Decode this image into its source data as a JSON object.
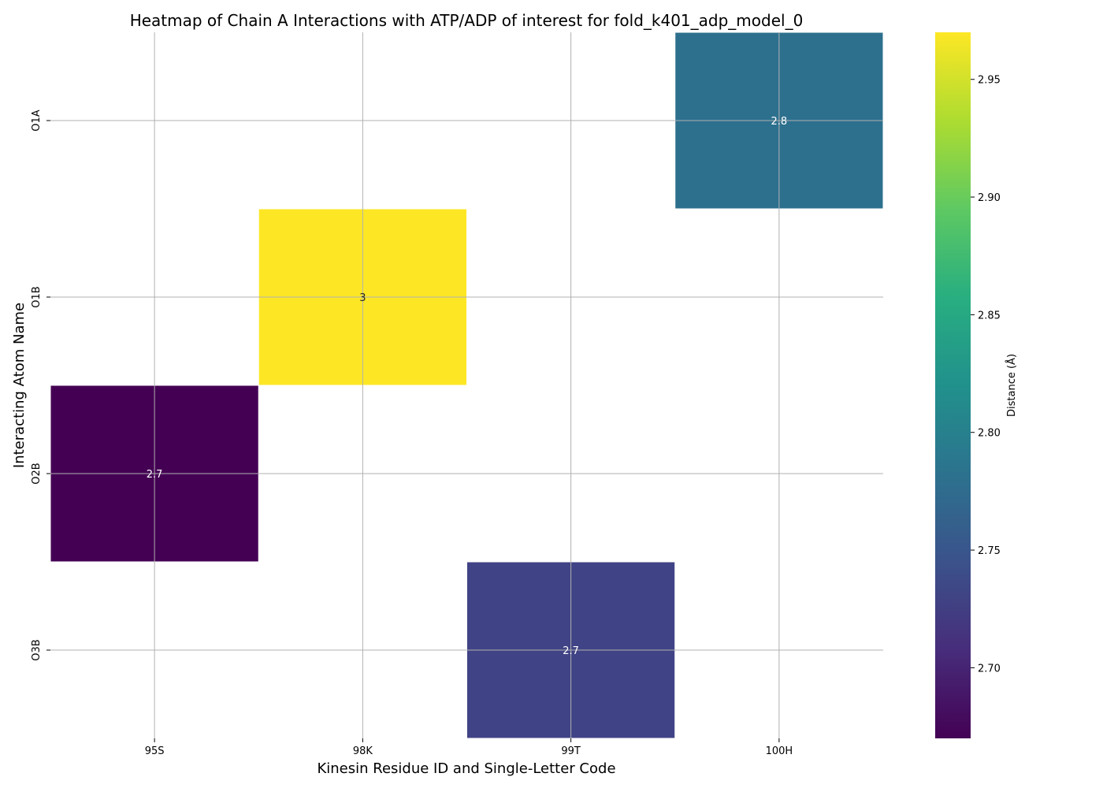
{
  "chart_data": {
    "type": "heatmap",
    "title": "Heatmap of Chain A Interactions with ATP/ADP of interest for fold_k401_adp_model_0",
    "xlabel": "Kinesin Residue ID and Single-Letter Code",
    "ylabel": "Interacting Atom Name",
    "x_categories": [
      "95S",
      "98K",
      "99T",
      "100H"
    ],
    "y_categories": [
      "O1A",
      "O1B",
      "O2B",
      "O3B"
    ],
    "cells": [
      {
        "x": "100H",
        "y": "O1A",
        "value": 2.78,
        "label": "2.8"
      },
      {
        "x": "98K",
        "y": "O1B",
        "value": 2.97,
        "label": "3"
      },
      {
        "x": "95S",
        "y": "O2B",
        "value": 2.67,
        "label": "2.7"
      },
      {
        "x": "99T",
        "y": "O3B",
        "value": 2.73,
        "label": "2.7"
      }
    ],
    "colorbar": {
      "label": "Distance (Å)",
      "colormap": "viridis",
      "range": [
        2.67,
        2.97
      ],
      "ticks": [
        "2.70",
        "2.75",
        "2.80",
        "2.85",
        "2.90",
        "2.95"
      ]
    },
    "grid": true
  }
}
